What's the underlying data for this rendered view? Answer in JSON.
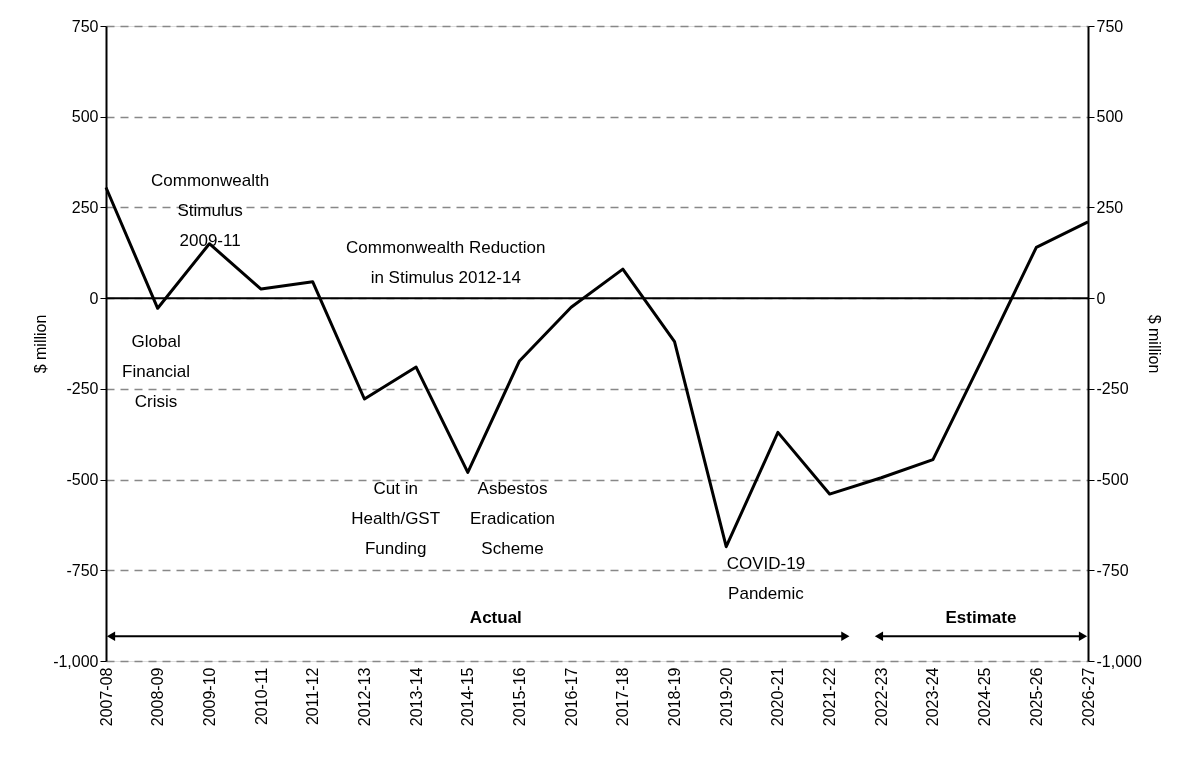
{
  "chart_data": {
    "type": "line",
    "ylabel": "$ million",
    "y2label": "$ million",
    "categories": [
      "2007-08",
      "2008-09",
      "2009-10",
      "2010-11",
      "2011-12",
      "2012-13",
      "2013-14",
      "2014-15",
      "2015-16",
      "2016-17",
      "2017-18",
      "2018-19",
      "2019-20",
      "2020-21",
      "2021-22",
      "2022-23",
      "2023-24",
      "2024-25",
      "2025-26",
      "2026-27"
    ],
    "series": [
      {
        "color": "#000000",
        "values": [
          305,
          -28,
          150,
          25,
          45,
          -278,
          -190,
          -480,
          -173,
          -25,
          80,
          -120,
          -685,
          -370,
          -540,
          -495,
          -445,
          -155,
          140,
          210
        ]
      }
    ],
    "ylim": [
      -1000,
      750
    ],
    "yticks": [
      {
        "value": -1000,
        "label": "-1,000"
      },
      -750,
      -500,
      -250,
      0,
      250,
      500,
      750
    ],
    "y2lim": [
      -1000,
      750
    ],
    "y2ticks": [
      {
        "value": -1000,
        "label": "-1,000"
      },
      -750,
      -500,
      -250,
      0,
      250,
      500,
      750
    ],
    "grid": "y",
    "marker": "none",
    "line_style": "solid",
    "annotations": [
      "Commonwealth\nStimulus\n2009-11",
      "Commonwealth Reduction\nin Stimulus 2012-14",
      "Global\nFinancial\nCrisis",
      "Cut in\nHealth/GST\nFunding",
      "Asbestos\nEradication\nScheme",
      "COVID-19\nPandemic",
      "Actual",
      "Estimate"
    ]
  }
}
